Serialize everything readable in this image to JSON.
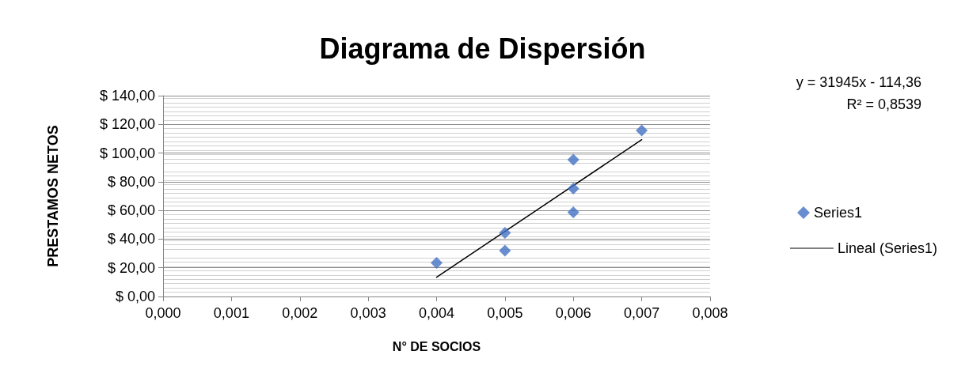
{
  "chart_data": {
    "type": "scatter",
    "title": "Diagrama de Dispersión",
    "xlabel": "N° DE SOCIOS",
    "ylabel": "PRESTAMOS NETOS",
    "x": [
      0.004,
      0.005,
      0.005,
      0.006,
      0.006,
      0.006,
      0.007
    ],
    "series": [
      {
        "name": "Series1",
        "marker": "diamond",
        "color": "#4472c4",
        "values": [
          23.4,
          44.4,
          32.0,
          95.4,
          75.2,
          58.7,
          115.8
        ]
      },
      {
        "name": "Lineal (Series1)",
        "type": "line",
        "marker": "none",
        "line_style": "solid",
        "color": "#000000",
        "x": [
          0.004,
          0.007
        ],
        "values": [
          13.4,
          109.3
        ]
      }
    ],
    "xlim": [
      0,
      0.008
    ],
    "xticks": [
      {
        "value": 0,
        "label": "0,000"
      },
      {
        "value": 0.001,
        "label": "0,001"
      },
      {
        "value": 0.002,
        "label": "0,002"
      },
      {
        "value": 0.003,
        "label": "0,003"
      },
      {
        "value": 0.004,
        "label": "0,004"
      },
      {
        "value": 0.005,
        "label": "0,005"
      },
      {
        "value": 0.006,
        "label": "0,006"
      },
      {
        "value": 0.007,
        "label": "0,007"
      },
      {
        "value": 0.008,
        "label": "0,008"
      }
    ],
    "ylim": [
      0,
      140
    ],
    "yticks": [
      {
        "value": 0,
        "label": "$ 0,00"
      },
      {
        "value": 20,
        "label": "$ 20,00"
      },
      {
        "value": 40,
        "label": "$ 40,00"
      },
      {
        "value": 60,
        "label": "$ 60,00"
      },
      {
        "value": 80,
        "label": "$ 80,00"
      },
      {
        "value": 100,
        "label": "$ 100,00"
      },
      {
        "value": 120,
        "label": "$ 120,00"
      },
      {
        "value": 140,
        "label": "$ 140,00"
      }
    ],
    "annotations": [
      "y = 31945x - 114,36",
      "R² = 0,8539"
    ],
    "grid": "y",
    "legend": "right"
  }
}
